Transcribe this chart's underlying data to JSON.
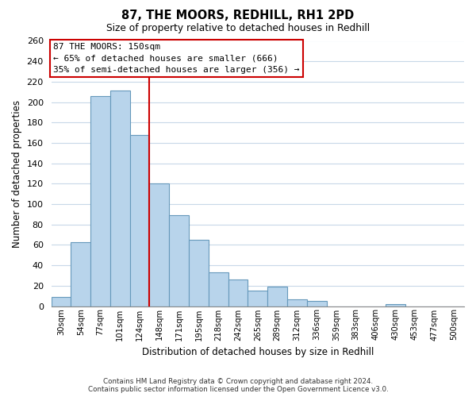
{
  "title": "87, THE MOORS, REDHILL, RH1 2PD",
  "subtitle": "Size of property relative to detached houses in Redhill",
  "xlabel": "Distribution of detached houses by size in Redhill",
  "ylabel": "Number of detached properties",
  "bin_labels": [
    "30sqm",
    "54sqm",
    "77sqm",
    "101sqm",
    "124sqm",
    "148sqm",
    "171sqm",
    "195sqm",
    "218sqm",
    "242sqm",
    "265sqm",
    "289sqm",
    "312sqm",
    "336sqm",
    "359sqm",
    "383sqm",
    "406sqm",
    "430sqm",
    "453sqm",
    "477sqm",
    "500sqm"
  ],
  "bar_values": [
    9,
    63,
    206,
    211,
    168,
    120,
    89,
    65,
    33,
    26,
    15,
    19,
    7,
    5,
    0,
    0,
    0,
    2,
    0,
    0,
    0
  ],
  "bar_color": "#b8d4eb",
  "bar_edge_color": "#6699bb",
  "ylim": [
    0,
    260
  ],
  "yticks": [
    0,
    20,
    40,
    60,
    80,
    100,
    120,
    140,
    160,
    180,
    200,
    220,
    240,
    260
  ],
  "vline_color": "#cc0000",
  "ann_line1": "87 THE MOORS: 150sqm",
  "ann_line2": "← 65% of detached houses are smaller (666)",
  "ann_line3": "35% of semi-detached houses are larger (356) →",
  "footer_line1": "Contains HM Land Registry data © Crown copyright and database right 2024.",
  "footer_line2": "Contains public sector information licensed under the Open Government Licence v3.0.",
  "background_color": "#ffffff",
  "grid_color": "#c8d8e8"
}
